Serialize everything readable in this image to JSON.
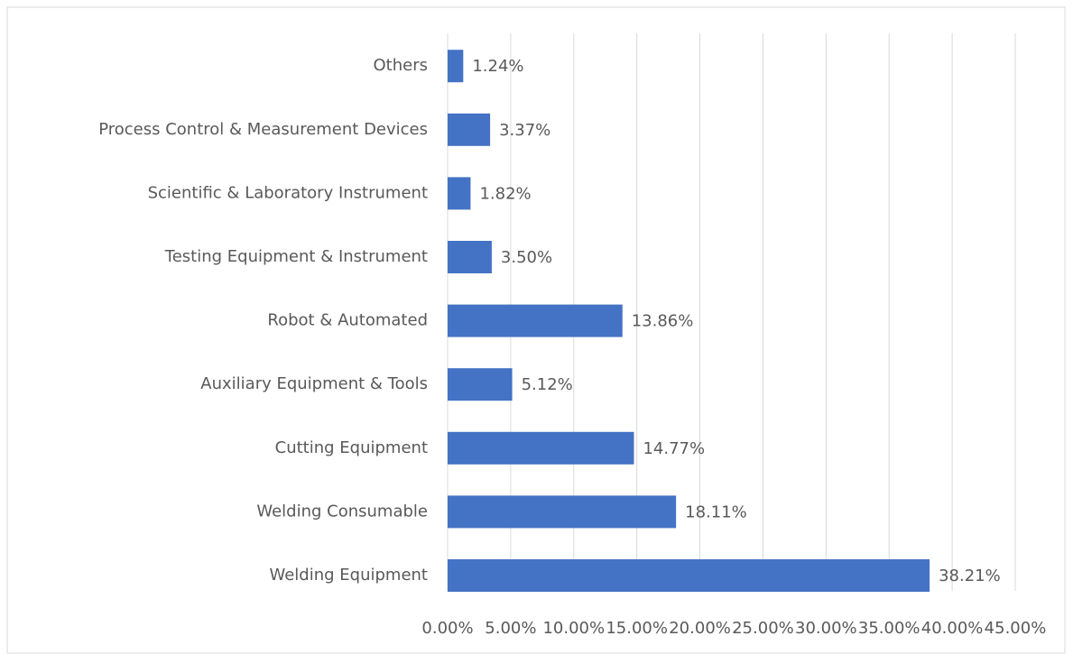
{
  "chart_data": {
    "type": "bar",
    "orientation": "horizontal",
    "categories": [
      "Welding Equipment",
      "Welding Consumable",
      "Cutting Equipment",
      "Auxiliary Equipment & Tools",
      "Robot & Automated",
      "Testing Equipment & Instrument",
      "Scientific & Laboratory Instrument",
      "Process Control & Measurement Devices",
      "Others"
    ],
    "values": [
      38.21,
      18.11,
      14.77,
      5.12,
      13.86,
      3.5,
      1.82,
      3.37,
      1.24
    ],
    "value_labels": [
      "38.21%",
      "18.11%",
      "14.77%",
      "5.12%",
      "13.86%",
      "3.50%",
      "1.82%",
      "3.37%",
      "1.24%"
    ],
    "color": "#4472c4",
    "xlim": [
      0,
      45
    ],
    "xticks": [
      {
        "value": 0,
        "label": "0.00%"
      },
      {
        "value": 5,
        "label": "5.00%"
      },
      {
        "value": 10,
        "label": "10.00%"
      },
      {
        "value": 15,
        "label": "15.00%"
      },
      {
        "value": 20,
        "label": "20.00%"
      },
      {
        "value": 25,
        "label": "25.00%"
      },
      {
        "value": 30,
        "label": "30.00%"
      },
      {
        "value": 35,
        "label": "35.00%"
      },
      {
        "value": 40,
        "label": "40.00%"
      },
      {
        "value": 45,
        "label": "45.00%"
      }
    ],
    "grid": true
  }
}
